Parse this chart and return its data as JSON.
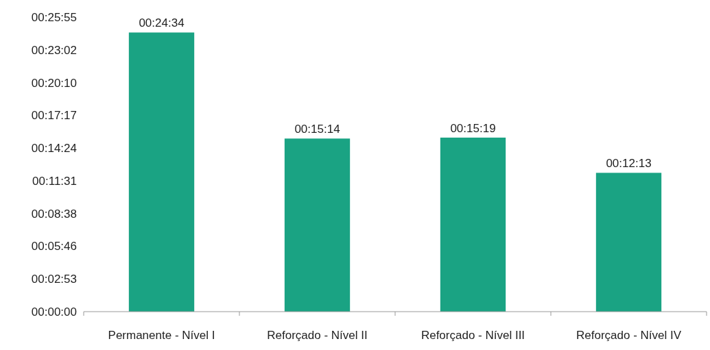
{
  "chart_data": {
    "type": "bar",
    "categories": [
      "Permanente - Nível I",
      "Reforçado - Nível II",
      "Reforçado - Nível III",
      "Reforçado - Nível IV"
    ],
    "values": [
      1474,
      914,
      919,
      733
    ],
    "value_labels": [
      "00:24:34",
      "00:15:14",
      "00:15:19",
      "00:12:13"
    ],
    "color": "#1aa383",
    "ylim": [
      0,
      1555.2
    ],
    "yticks": [
      {
        "value": 0,
        "label": "00:00:00"
      },
      {
        "value": 172.8,
        "label": "00:02:53"
      },
      {
        "value": 345.6,
        "label": "00:05:46"
      },
      {
        "value": 518.4,
        "label": "00:08:38"
      },
      {
        "value": 691.2,
        "label": "00:11:31"
      },
      {
        "value": 864,
        "label": "00:14:24"
      },
      {
        "value": 1036.8,
        "label": "00:17:17"
      },
      {
        "value": 1209.6,
        "label": "00:20:10"
      },
      {
        "value": 1382.4,
        "label": "00:23:02"
      },
      {
        "value": 1555.2,
        "label": "00:25:55"
      }
    ],
    "grid": false
  }
}
